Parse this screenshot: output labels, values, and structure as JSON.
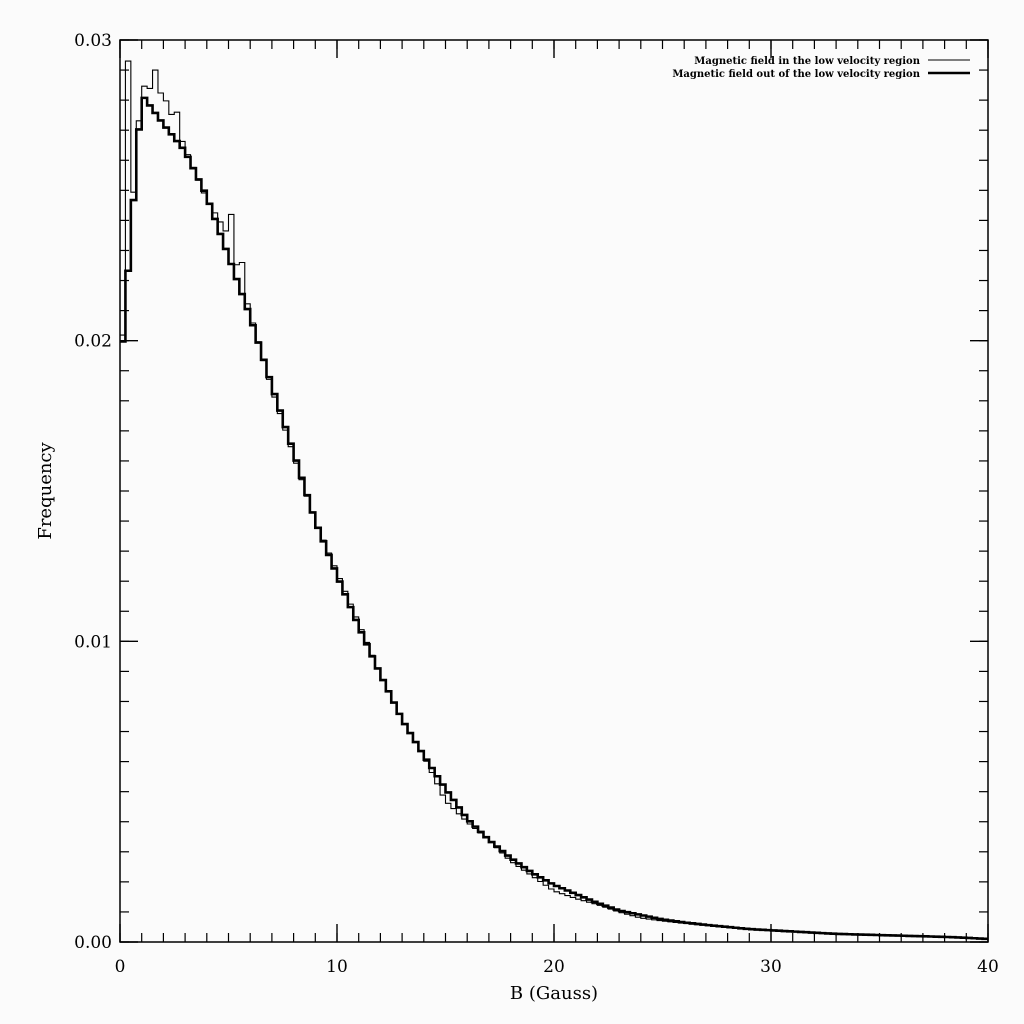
{
  "chart_data": {
    "type": "line",
    "xlabel": "B  (Gauss)",
    "ylabel": "Frequency",
    "xlim": [
      0,
      40
    ],
    "ylim": [
      0,
      0.03
    ],
    "x_ticks": [
      {
        "value": 0,
        "label": "0"
      },
      {
        "value": 10,
        "label": "10"
      },
      {
        "value": 20,
        "label": "20"
      },
      {
        "value": 30,
        "label": "30"
      },
      {
        "value": 40,
        "label": "40"
      }
    ],
    "y_ticks": [
      {
        "value": 0,
        "label": "0.00"
      },
      {
        "value": 0.01,
        "label": "0.01"
      },
      {
        "value": 0.02,
        "label": "0.02"
      },
      {
        "value": 0.03,
        "label": "0.03"
      }
    ],
    "x_minor_step": 1,
    "y_minor_step": 0.001,
    "grid": false,
    "legend_position": "top-right",
    "bin_width": 0.25,
    "series": [
      {
        "name": "Magnetic field in the low velocity region",
        "line_style": "thin",
        "color": "#000000",
        "x": [
          0,
          1,
          2,
          3,
          4,
          5,
          6,
          7,
          8,
          9,
          10,
          11,
          12,
          13,
          14,
          15,
          16,
          17,
          18,
          19,
          20,
          21,
          22,
          23,
          24,
          25,
          26,
          27,
          28,
          29,
          30,
          31,
          32,
          33,
          34,
          35,
          36,
          37,
          38,
          39,
          40
        ],
        "values": [
          0.019,
          0.0285,
          0.0282,
          0.0264,
          0.0247,
          0.0235,
          0.0209,
          0.0184,
          0.0162,
          0.014,
          0.0123,
          0.0106,
          0.0089,
          0.0074,
          0.0062,
          0.0047,
          0.004,
          0.0034,
          0.0027,
          0.0022,
          0.0017,
          0.00145,
          0.00125,
          0.001,
          0.0008,
          0.0007,
          0.00062,
          0.00055,
          0.00048,
          0.00042,
          0.00038,
          0.00034,
          0.0003,
          0.00026,
          0.00024,
          0.00022,
          0.0002,
          0.00018,
          0.00016,
          0.00014,
          0.0001
        ],
        "low_b_spikes": [
          {
            "x": 0.25,
            "value": 0.0293
          },
          {
            "x": 1.5,
            "value": 0.029
          },
          {
            "x": 2.5,
            "value": 0.0276
          },
          {
            "x": 5.0,
            "value": 0.0242
          },
          {
            "x": 5.5,
            "value": 0.0226
          }
        ]
      },
      {
        "name": "Magnetic field out of the low velocity region",
        "line_style": "thick",
        "color": "#000000",
        "x": [
          0,
          1,
          2,
          3,
          4,
          5,
          6,
          7,
          8,
          9,
          10,
          11,
          12,
          13,
          14,
          15,
          16,
          17,
          18,
          19,
          20,
          21,
          22,
          23,
          24,
          25,
          26,
          27,
          28,
          29,
          30,
          31,
          32,
          33,
          34,
          35,
          36,
          37,
          38,
          39,
          40
        ],
        "values": [
          0.0188,
          0.0282,
          0.0272,
          0.0263,
          0.0248,
          0.0228,
          0.0208,
          0.0185,
          0.0163,
          0.014,
          0.0122,
          0.0105,
          0.0089,
          0.0074,
          0.0062,
          0.0051,
          0.0041,
          0.0034,
          0.0028,
          0.0023,
          0.0019,
          0.0016,
          0.0013,
          0.00105,
          0.0009,
          0.00075,
          0.00065,
          0.00057,
          0.0005,
          0.00043,
          0.00039,
          0.00035,
          0.00031,
          0.00027,
          0.00025,
          0.00023,
          0.00021,
          0.00019,
          0.00017,
          0.00014,
          0.0001
        ]
      }
    ]
  }
}
